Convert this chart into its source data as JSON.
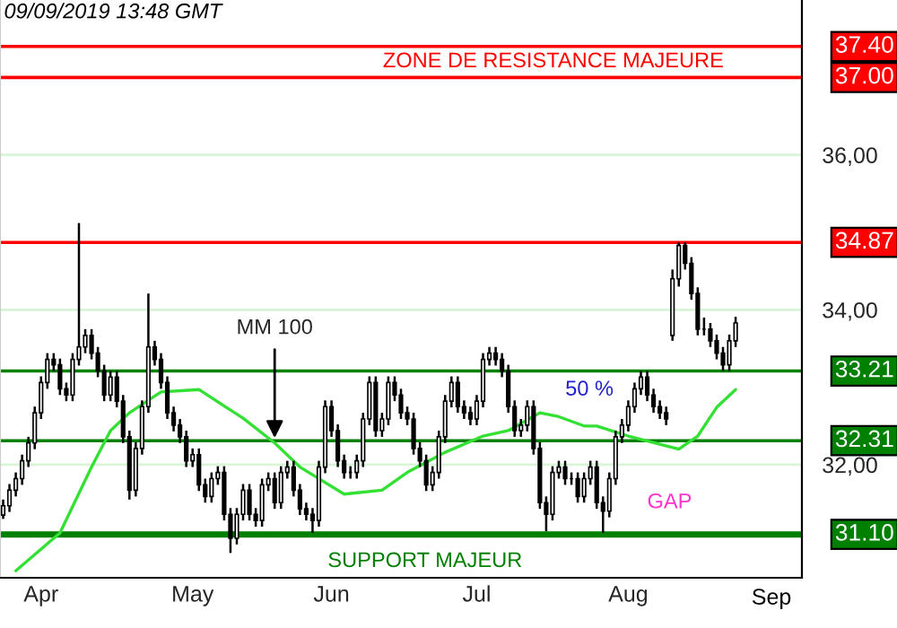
{
  "chart_data": {
    "type": "candlestick",
    "categories": [
      null,
      null,
      null,
      null,
      null,
      null,
      "Apr",
      null,
      null,
      null,
      null,
      null,
      null,
      null,
      null,
      null,
      null,
      null,
      null,
      null,
      null,
      null,
      null,
      null,
      null,
      null,
      null,
      null,
      null,
      null,
      "May",
      null,
      null,
      null,
      null,
      null,
      null,
      null,
      null,
      null,
      null,
      null,
      null,
      null,
      null,
      null,
      null,
      null,
      null,
      null,
      null,
      null,
      "Jun",
      null,
      null,
      null,
      null,
      null,
      null,
      null,
      null,
      null,
      null,
      null,
      null,
      null,
      null,
      null,
      null,
      null,
      null,
      null,
      null,
      null,
      null,
      "Jul",
      null,
      null,
      null,
      null,
      null,
      null,
      null,
      null,
      null,
      null,
      null,
      null,
      null,
      null,
      null,
      null,
      null,
      null,
      null,
      null,
      null,
      null,
      null,
      "Aug",
      null,
      null,
      null,
      null,
      null,
      null,
      null,
      null,
      null,
      null,
      null,
      null,
      null,
      null,
      null,
      null,
      null
    ],
    "ohlc": [
      [
        31.35,
        31.55,
        31.3,
        31.47
      ],
      [
        31.47,
        31.75,
        31.39,
        31.67
      ],
      [
        31.67,
        31.9,
        31.59,
        31.82
      ],
      [
        31.82,
        32.13,
        31.74,
        32.05
      ],
      [
        32.05,
        32.36,
        31.97,
        32.28
      ],
      [
        32.28,
        32.75,
        32.2,
        32.67
      ],
      [
        32.67,
        33.14,
        32.59,
        33.06
      ],
      [
        33.06,
        33.44,
        32.98,
        33.36
      ],
      [
        33.36,
        33.44,
        33.21,
        33.29
      ],
      [
        33.29,
        33.37,
        32.9,
        32.98
      ],
      [
        32.98,
        33.06,
        32.82,
        32.9
      ],
      [
        32.9,
        33.44,
        32.82,
        33.36
      ],
      [
        33.36,
        35.12,
        33.28,
        33.52
      ],
      [
        33.52,
        33.75,
        33.44,
        33.67
      ],
      [
        33.67,
        33.75,
        33.36,
        33.44
      ],
      [
        33.44,
        33.52,
        33.13,
        33.21
      ],
      [
        33.21,
        33.29,
        32.82,
        32.9
      ],
      [
        32.9,
        33.21,
        32.82,
        33.13
      ],
      [
        33.13,
        33.21,
        32.74,
        32.82
      ],
      [
        32.82,
        32.9,
        32.28,
        32.36
      ],
      [
        32.36,
        32.44,
        31.55,
        31.67
      ],
      [
        31.67,
        32.29,
        31.59,
        32.21
      ],
      [
        32.21,
        32.83,
        32.13,
        32.75
      ],
      [
        32.75,
        34.21,
        32.67,
        33.52
      ],
      [
        33.52,
        33.6,
        33.28,
        33.36
      ],
      [
        33.36,
        33.44,
        32.98,
        33.06
      ],
      [
        33.06,
        33.14,
        32.59,
        32.67
      ],
      [
        32.67,
        32.75,
        32.43,
        32.51
      ],
      [
        32.51,
        32.59,
        32.28,
        32.36
      ],
      [
        32.36,
        32.44,
        31.97,
        32.05
      ],
      [
        32.05,
        32.21,
        31.97,
        32.13
      ],
      [
        32.13,
        32.21,
        31.66,
        31.74
      ],
      [
        31.74,
        31.82,
        31.51,
        31.59
      ],
      [
        31.59,
        31.9,
        31.51,
        31.82
      ],
      [
        31.82,
        31.98,
        31.74,
        31.9
      ],
      [
        31.9,
        31.98,
        31.28,
        31.36
      ],
      [
        31.36,
        31.44,
        30.86,
        31.05
      ],
      [
        31.05,
        31.44,
        30.97,
        31.36
      ],
      [
        31.36,
        31.75,
        31.28,
        31.67
      ],
      [
        31.67,
        31.75,
        31.28,
        31.36
      ],
      [
        31.36,
        31.44,
        31.2,
        31.28
      ],
      [
        31.28,
        31.82,
        31.2,
        31.74
      ],
      [
        31.74,
        31.9,
        31.66,
        31.82
      ],
      [
        31.82,
        31.9,
        31.43,
        31.51
      ],
      [
        31.51,
        31.98,
        31.43,
        31.9
      ],
      [
        31.9,
        32.05,
        31.82,
        31.97
      ],
      [
        31.97,
        32.05,
        31.59,
        31.67
      ],
      [
        31.67,
        31.75,
        31.35,
        31.43
      ],
      [
        31.43,
        31.51,
        31.28,
        31.36
      ],
      [
        31.36,
        31.44,
        31.12,
        31.28
      ],
      [
        31.28,
        32.05,
        31.2,
        31.97
      ],
      [
        31.97,
        32.83,
        31.89,
        32.75
      ],
      [
        32.75,
        32.83,
        32.36,
        32.44
      ],
      [
        32.44,
        32.52,
        31.97,
        32.05
      ],
      [
        32.05,
        32.13,
        31.82,
        31.9
      ],
      [
        31.9,
        31.98,
        31.82,
        31.9
      ],
      [
        31.9,
        32.13,
        31.82,
        32.05
      ],
      [
        32.05,
        32.67,
        31.97,
        32.59
      ],
      [
        32.59,
        33.14,
        32.51,
        33.06
      ],
      [
        33.06,
        33.14,
        32.36,
        32.44
      ],
      [
        32.44,
        32.67,
        32.36,
        32.59
      ],
      [
        32.59,
        33.14,
        32.51,
        33.06
      ],
      [
        33.06,
        33.14,
        32.82,
        32.9
      ],
      [
        32.9,
        32.98,
        32.59,
        32.67
      ],
      [
        32.67,
        32.75,
        32.51,
        32.59
      ],
      [
        32.59,
        32.67,
        32.13,
        32.21
      ],
      [
        32.21,
        32.29,
        31.97,
        32.05
      ],
      [
        32.05,
        32.13,
        31.66,
        31.74
      ],
      [
        31.74,
        31.98,
        31.66,
        31.9
      ],
      [
        31.9,
        32.44,
        31.82,
        32.36
      ],
      [
        32.36,
        32.9,
        32.28,
        32.82
      ],
      [
        32.82,
        33.14,
        32.74,
        33.06
      ],
      [
        33.06,
        33.14,
        32.67,
        32.75
      ],
      [
        32.75,
        32.83,
        32.59,
        32.67
      ],
      [
        32.67,
        32.75,
        32.51,
        32.59
      ],
      [
        32.59,
        32.9,
        32.51,
        32.82
      ],
      [
        32.82,
        33.44,
        32.74,
        33.36
      ],
      [
        33.36,
        33.52,
        33.28,
        33.44
      ],
      [
        33.44,
        33.52,
        33.28,
        33.36
      ],
      [
        33.36,
        33.44,
        33.13,
        33.21
      ],
      [
        33.21,
        33.29,
        32.67,
        32.75
      ],
      [
        32.75,
        32.83,
        32.36,
        32.44
      ],
      [
        32.44,
        32.59,
        32.36,
        32.51
      ],
      [
        32.51,
        32.83,
        32.43,
        32.75
      ],
      [
        32.75,
        32.83,
        32.13,
        32.21
      ],
      [
        32.21,
        32.29,
        31.43,
        31.51
      ],
      [
        31.51,
        31.59,
        31.14,
        31.36
      ],
      [
        31.36,
        31.98,
        31.28,
        31.9
      ],
      [
        31.9,
        32.05,
        31.82,
        31.97
      ],
      [
        31.97,
        32.05,
        31.74,
        31.82
      ],
      [
        31.82,
        31.9,
        31.74,
        31.82
      ],
      [
        31.82,
        31.9,
        31.51,
        31.59
      ],
      [
        31.59,
        31.9,
        31.51,
        31.82
      ],
      [
        31.82,
        32.05,
        31.74,
        31.97
      ],
      [
        31.97,
        32.05,
        31.43,
        31.51
      ],
      [
        31.51,
        31.59,
        31.12,
        31.4
      ],
      [
        31.4,
        31.9,
        31.32,
        31.82
      ],
      [
        31.82,
        32.44,
        31.74,
        32.36
      ],
      [
        32.36,
        32.59,
        32.28,
        32.51
      ],
      [
        32.51,
        32.83,
        32.43,
        32.75
      ],
      [
        32.75,
        33.06,
        32.67,
        32.98
      ],
      [
        32.98,
        33.21,
        32.9,
        33.13
      ],
      [
        33.13,
        33.21,
        32.82,
        32.9
      ],
      [
        32.9,
        32.98,
        32.67,
        32.75
      ],
      [
        32.75,
        32.83,
        32.59,
        32.67
      ],
      [
        32.67,
        32.75,
        32.51,
        32.59
      ],
      [
        33.67,
        34.52,
        33.6,
        34.4
      ],
      [
        34.4,
        34.87,
        34.3,
        34.83
      ],
      [
        34.83,
        34.87,
        34.52,
        34.6
      ],
      [
        34.6,
        34.68,
        34.13,
        34.21
      ],
      [
        34.21,
        34.29,
        33.67,
        33.75
      ],
      [
        33.75,
        33.9,
        33.67,
        33.75
      ],
      [
        33.75,
        33.83,
        33.52,
        33.6
      ],
      [
        33.6,
        33.68,
        33.36,
        33.44
      ],
      [
        33.44,
        33.52,
        33.21,
        33.29
      ],
      [
        33.29,
        33.68,
        33.21,
        33.6
      ],
      [
        33.6,
        33.91,
        33.52,
        33.83
      ]
    ],
    "color": "#000000",
    "series": [
      {
        "name": "MM 100",
        "type": "line",
        "color": "#33e033",
        "values": [
          null,
          null,
          30.63,
          null,
          null,
          null,
          null,
          null,
          null,
          31.12,
          null,
          null,
          null,
          null,
          31.97,
          null,
          null,
          32.44,
          null,
          null,
          32.67,
          null,
          null,
          null,
          null,
          32.94,
          null,
          null,
          null,
          null,
          null,
          32.97,
          null,
          null,
          null,
          null,
          null,
          null,
          32.6,
          null,
          null,
          null,
          null,
          32.28,
          null,
          null,
          null,
          31.97,
          null,
          null,
          null,
          null,
          null,
          null,
          31.62,
          null,
          null,
          null,
          null,
          null,
          31.67,
          null,
          null,
          null,
          31.9,
          null,
          null,
          null,
          null,
          null,
          32.16,
          null,
          null,
          null,
          null,
          null,
          32.37,
          null,
          null,
          null,
          32.44,
          null,
          null,
          null,
          null,
          32.67,
          null,
          null,
          32.62,
          null,
          null,
          null,
          32.5,
          null,
          32.5,
          null,
          null,
          null,
          null,
          32.37,
          null,
          null,
          null,
          null,
          null,
          null,
          null,
          32.2,
          null,
          null,
          32.37,
          null,
          null,
          32.74,
          null,
          null,
          32.97
        ]
      }
    ],
    "ylim": [
      30.54,
      38.0
    ],
    "yticks": [
      {
        "value": 32,
        "label": "32,00"
      },
      {
        "value": 34,
        "label": "34,00"
      },
      {
        "value": 36,
        "label": "36,00"
      }
    ],
    "grid": "y",
    "ref_lines": [
      {
        "axis": "y",
        "value": 37.4,
        "label": "37.40",
        "color": "#ff0000"
      },
      {
        "axis": "y",
        "value": 37.0,
        "label": "37.00",
        "color": "#ff0000"
      },
      {
        "axis": "y",
        "value": 34.87,
        "label": "34.87",
        "color": "#ff0000"
      },
      {
        "axis": "y",
        "value": 33.21,
        "label": "33.21",
        "color": "#008000"
      },
      {
        "axis": "y",
        "value": 32.31,
        "label": "32.31",
        "color": "#008000"
      },
      {
        "axis": "y",
        "value": 31.1,
        "label": "31.10",
        "color": "#008000"
      }
    ],
    "annotations": [
      "09/09/2019 13:48 GMT",
      "ZONE DE RESISTANCE MAJEURE",
      "SUPPORT MAJEUR",
      "50 %",
      "GAP",
      "Sep"
    ]
  }
}
